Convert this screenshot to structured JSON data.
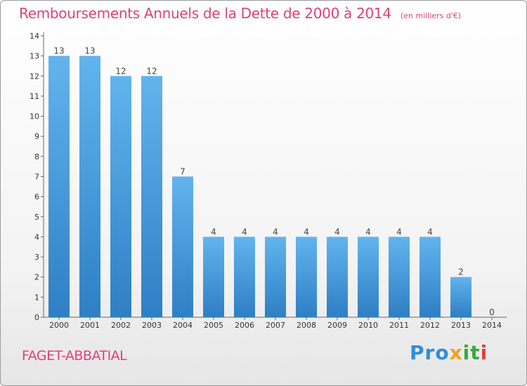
{
  "chart_data": {
    "type": "bar",
    "title": "Remboursements Annuels de la Dette de 2000 à 2014",
    "subtitle": "(en milliers d'€)",
    "xlabel": "",
    "ylabel": "",
    "categories": [
      "2000",
      "2001",
      "2002",
      "2003",
      "2004",
      "2005",
      "2006",
      "2007",
      "2008",
      "2009",
      "2010",
      "2011",
      "2012",
      "2013",
      "2014"
    ],
    "values": [
      13,
      13,
      12,
      12,
      7,
      4,
      4,
      4,
      4,
      4,
      4,
      4,
      4,
      2,
      0
    ],
    "data_labels": [
      "13",
      "13",
      "12",
      "12",
      "7",
      "4",
      "4",
      "4",
      "4",
      "4",
      "4",
      "4",
      "4",
      "2",
      "0"
    ],
    "y_ticks": [
      "0",
      "1",
      "2",
      "3",
      "4",
      "5",
      "6",
      "7",
      "8",
      "9",
      "10",
      "11",
      "12",
      "13",
      "14"
    ],
    "ylim": [
      0,
      14
    ],
    "grid": false,
    "legend": "none",
    "colors": {
      "bar_top": "#62b4ee",
      "bar_bottom": "#2e7fc4",
      "title": "#e0407a"
    }
  },
  "commune": "FAGET-ABBATIAL",
  "logo": {
    "p1": "Pro",
    "p2": "x",
    "p3": "it",
    "p4": "i"
  }
}
